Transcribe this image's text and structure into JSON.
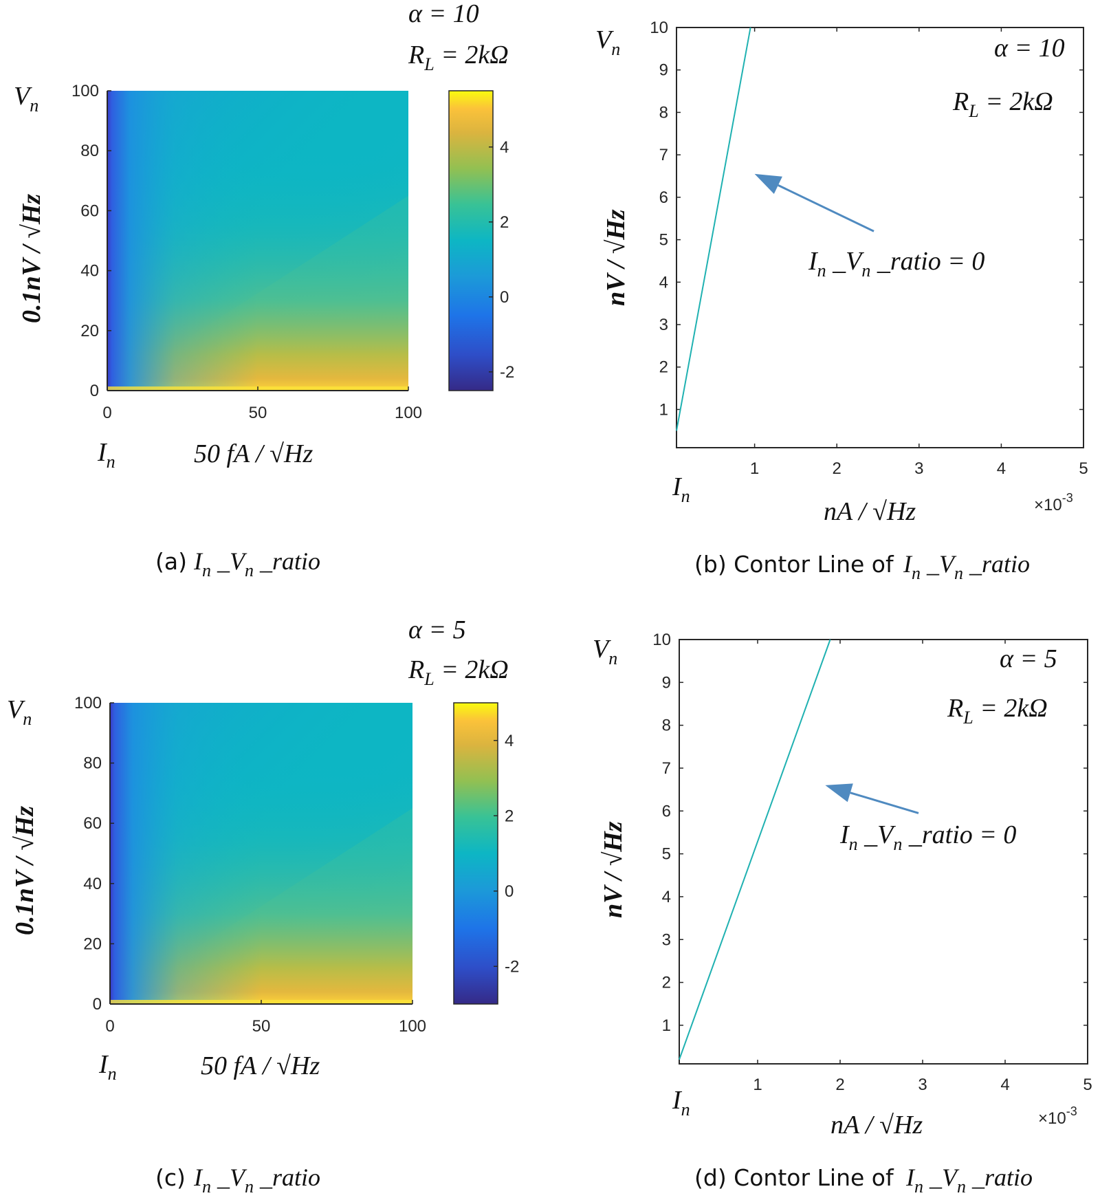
{
  "panels": [
    {
      "id": "a",
      "caption_prefix": "(a)",
      "caption_math": "I n _V n _ratio",
      "param_alpha": "α = 10",
      "param_rl": "R L = 2kΩ",
      "x_symbol": "I n",
      "x_unit": "50 fA / √Hz",
      "y_symbol": "V n",
      "y_unit": "0.1nV / √Hz"
    },
    {
      "id": "b",
      "caption_prefix": "(b) Contor Line of",
      "caption_math": "I n _V n _ratio",
      "param_alpha": "α = 10",
      "param_rl": "R L = 2kΩ",
      "x_symbol": "I n",
      "x_unit": "nA / √Hz",
      "x_exponent": "×10",
      "x_exponent_power": "-3",
      "y_symbol": "V n",
      "y_unit": "nV / √Hz",
      "annotation": "I n _V n _ratio = 0"
    },
    {
      "id": "c",
      "caption_prefix": "(c)",
      "caption_math": "I n _V n _ratio",
      "param_alpha": "α = 5",
      "param_rl": "R L = 2kΩ",
      "x_symbol": "I n",
      "x_unit": "50 fA / √Hz",
      "y_symbol": "V n",
      "y_unit": "0.1nV / √Hz"
    },
    {
      "id": "d",
      "caption_prefix": "(d) Contor Line of",
      "caption_math": "I n _V n _ratio",
      "param_alpha": "α = 5",
      "param_rl": "R L = 2kΩ",
      "x_symbol": "I n",
      "x_unit": "nA / √Hz",
      "x_exponent": "×10",
      "x_exponent_power": "-3",
      "y_symbol": "V n",
      "y_unit": "nV / √Hz",
      "annotation": "I n _V n _ratio = 0"
    }
  ],
  "chart_data": [
    {
      "panel": "a",
      "type": "heatmap",
      "x_ticks": [
        0,
        50,
        100
      ],
      "y_ticks": [
        0,
        20,
        40,
        60,
        80,
        100
      ],
      "xlim": [
        0,
        100
      ],
      "ylim": [
        0,
        100
      ],
      "colorbar_ticks": [
        -2,
        0,
        2,
        4
      ],
      "colorbar_range": [
        -2.5,
        5.5
      ],
      "colormap": "parula"
    },
    {
      "panel": "b",
      "type": "line",
      "x_ticks": [
        1,
        2,
        3,
        4,
        5
      ],
      "y_ticks": [
        1,
        2,
        3,
        4,
        5,
        6,
        7,
        8,
        9,
        10
      ],
      "xlim": [
        0.05,
        5
      ],
      "ylim": [
        0.1,
        10
      ],
      "x_scale_exponent": -3,
      "series": [
        {
          "x": [
            0.05,
            0.95
          ],
          "y": [
            0.5,
            10
          ],
          "color": "#1fb1b1"
        }
      ],
      "arrow": {
        "from": [
          2.45,
          5.2
        ],
        "to": [
          1.0,
          6.55
        ]
      }
    },
    {
      "panel": "c",
      "type": "heatmap",
      "x_ticks": [
        0,
        50,
        100
      ],
      "y_ticks": [
        0,
        20,
        40,
        60,
        80,
        100
      ],
      "xlim": [
        0,
        100
      ],
      "ylim": [
        0,
        100
      ],
      "colorbar_ticks": [
        -2,
        0,
        2,
        4
      ],
      "colorbar_range": [
        -3,
        5
      ],
      "colormap": "parula"
    },
    {
      "panel": "d",
      "type": "line",
      "x_ticks": [
        1,
        2,
        3,
        4,
        5
      ],
      "y_ticks": [
        1,
        2,
        3,
        4,
        5,
        6,
        7,
        8,
        9,
        10
      ],
      "xlim": [
        0.05,
        5
      ],
      "ylim": [
        0.1,
        10
      ],
      "x_scale_exponent": -3,
      "series": [
        {
          "x": [
            0.05,
            1.88
          ],
          "y": [
            0.2,
            10
          ],
          "color": "#1fb1b1"
        }
      ],
      "arrow": {
        "from": [
          2.95,
          5.95
        ],
        "to": [
          1.82,
          6.6
        ]
      }
    }
  ]
}
